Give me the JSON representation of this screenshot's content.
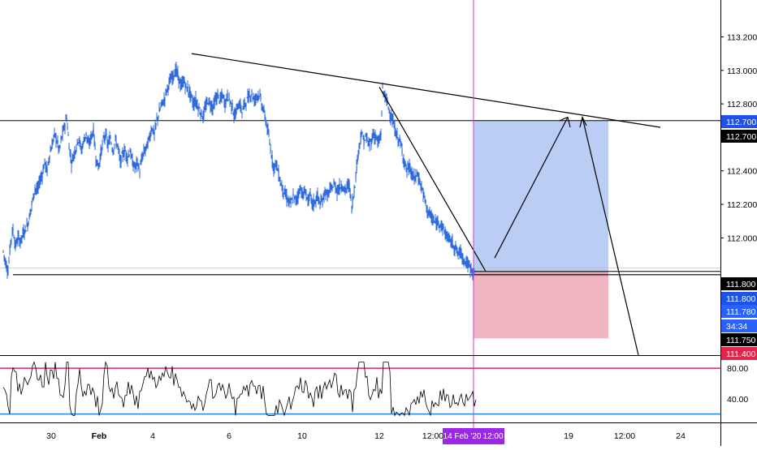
{
  "chart_data": {
    "type": "candlestick",
    "instrument_note": "USD/JPY style price chart with RSI sub-panel",
    "price_axis": {
      "ticks": [
        111.6,
        111.8,
        112.0,
        112.2,
        112.4,
        112.6,
        112.8,
        113.0,
        113.2
      ],
      "tick_labels": [
        "",
        "",
        "112.000",
        "112.200",
        "112.400",
        "112.600",
        "112.800",
        "113.000",
        "113.200"
      ],
      "ylim": [
        111.3,
        113.42
      ]
    },
    "x_axis": {
      "tick_labels": [
        "30",
        "Feb",
        "4",
        "6",
        "10",
        "12",
        "12:00",
        "19",
        "12:00",
        "24"
      ],
      "cursor_label": "14 Feb '20",
      "cursor_time_label": "12:00"
    },
    "price_badges": [
      {
        "label": "112.700",
        "value": 112.7,
        "color": "#1e53e5"
      },
      {
        "label": "112.700",
        "value": 112.7,
        "color": "#000000"
      },
      {
        "label": "111.800",
        "value": 111.8,
        "color": "#000000"
      },
      {
        "label": "111.800",
        "value": 111.8,
        "color": "#1e53e5"
      },
      {
        "label": "111.780",
        "value": 111.78,
        "color": "#2962ff"
      },
      {
        "label": "34:34",
        "value": null,
        "color": "#2962ff"
      },
      {
        "label": "111.750",
        "value": 111.75,
        "color": "#000000"
      },
      {
        "label": "111.400",
        "value": 111.4,
        "color": "#e0254a"
      }
    ],
    "series": [
      {
        "name": "Price",
        "points": [
          [
            0,
            111.92
          ],
          [
            3,
            111.85
          ],
          [
            6,
            111.8
          ],
          [
            9,
            111.98
          ],
          [
            12,
            112.05
          ],
          [
            15,
            111.95
          ],
          [
            18,
            112.0
          ],
          [
            21,
            111.98
          ],
          [
            24,
            112.02
          ],
          [
            27,
            112.05
          ],
          [
            30,
            112.08
          ],
          [
            33,
            112.15
          ],
          [
            36,
            112.22
          ],
          [
            39,
            112.3
          ],
          [
            42,
            112.28
          ],
          [
            45,
            112.34
          ],
          [
            48,
            112.38
          ],
          [
            51,
            112.45
          ],
          [
            54,
            112.4
          ],
          [
            57,
            112.5
          ],
          [
            60,
            112.55
          ],
          [
            63,
            112.62
          ],
          [
            66,
            112.58
          ],
          [
            69,
            112.52
          ],
          [
            72,
            112.6
          ],
          [
            75,
            112.66
          ],
          [
            78,
            112.72
          ],
          [
            81,
            112.55
          ],
          [
            84,
            112.45
          ],
          [
            87,
            112.5
          ],
          [
            90,
            112.55
          ],
          [
            93,
            112.6
          ],
          [
            96,
            112.52
          ],
          [
            99,
            112.58
          ],
          [
            102,
            112.62
          ],
          [
            105,
            112.55
          ],
          [
            108,
            112.6
          ],
          [
            111,
            112.64
          ],
          [
            114,
            112.48
          ],
          [
            117,
            112.42
          ],
          [
            120,
            112.5
          ],
          [
            123,
            112.58
          ],
          [
            126,
            112.62
          ],
          [
            129,
            112.55
          ],
          [
            132,
            112.6
          ],
          [
            135,
            112.52
          ],
          [
            138,
            112.58
          ],
          [
            141,
            112.55
          ],
          [
            144,
            112.45
          ],
          [
            147,
            112.5
          ],
          [
            150,
            112.52
          ],
          [
            153,
            112.48
          ],
          [
            156,
            112.52
          ],
          [
            159,
            112.45
          ],
          [
            162,
            112.42
          ],
          [
            165,
            112.45
          ],
          [
            168,
            112.4
          ],
          [
            171,
            112.48
          ],
          [
            174,
            112.52
          ],
          [
            177,
            112.55
          ],
          [
            180,
            112.6
          ],
          [
            183,
            112.66
          ],
          [
            186,
            112.62
          ],
          [
            189,
            112.7
          ],
          [
            192,
            112.75
          ],
          [
            195,
            112.8
          ],
          [
            198,
            112.82
          ],
          [
            201,
            112.88
          ],
          [
            204,
            112.92
          ],
          [
            207,
            112.95
          ],
          [
            210,
            112.98
          ],
          [
            213,
            113.0
          ],
          [
            216,
            112.95
          ],
          [
            219,
            112.9
          ],
          [
            222,
            112.94
          ],
          [
            225,
            112.9
          ],
          [
            228,
            112.88
          ],
          [
            231,
            112.85
          ],
          [
            234,
            112.8
          ],
          [
            237,
            112.82
          ],
          [
            240,
            112.78
          ],
          [
            243,
            112.75
          ],
          [
            246,
            112.72
          ],
          [
            249,
            112.78
          ],
          [
            252,
            112.82
          ],
          [
            255,
            112.8
          ],
          [
            258,
            112.78
          ],
          [
            261,
            112.82
          ],
          [
            264,
            112.85
          ],
          [
            267,
            112.82
          ],
          [
            270,
            112.85
          ],
          [
            273,
            112.8
          ],
          [
            276,
            112.85
          ],
          [
            279,
            112.82
          ],
          [
            282,
            112.78
          ],
          [
            285,
            112.72
          ],
          [
            288,
            112.78
          ],
          [
            291,
            112.8
          ],
          [
            294,
            112.75
          ],
          [
            297,
            112.8
          ],
          [
            300,
            112.82
          ],
          [
            303,
            112.85
          ],
          [
            306,
            112.86
          ],
          [
            309,
            112.82
          ],
          [
            312,
            112.85
          ],
          [
            315,
            112.86
          ],
          [
            318,
            112.8
          ],
          [
            321,
            112.75
          ],
          [
            324,
            112.68
          ],
          [
            327,
            112.6
          ],
          [
            330,
            112.5
          ],
          [
            333,
            112.42
          ],
          [
            336,
            112.45
          ],
          [
            339,
            112.38
          ],
          [
            342,
            112.32
          ],
          [
            345,
            112.28
          ],
          [
            348,
            112.25
          ],
          [
            351,
            112.22
          ],
          [
            354,
            112.2
          ],
          [
            357,
            112.25
          ],
          [
            360,
            112.22
          ],
          [
            363,
            112.26
          ],
          [
            366,
            112.3
          ],
          [
            369,
            112.25
          ],
          [
            372,
            112.28
          ],
          [
            375,
            112.22
          ],
          [
            378,
            112.25
          ],
          [
            381,
            112.2
          ],
          [
            384,
            112.22
          ],
          [
            387,
            112.25
          ],
          [
            390,
            112.2
          ],
          [
            393,
            112.22
          ],
          [
            396,
            112.28
          ],
          [
            399,
            112.25
          ],
          [
            402,
            112.28
          ],
          [
            405,
            112.3
          ],
          [
            408,
            112.32
          ],
          [
            411,
            112.28
          ],
          [
            414,
            112.3
          ],
          [
            417,
            112.32
          ],
          [
            420,
            112.28
          ],
          [
            423,
            112.3
          ],
          [
            426,
            112.32
          ],
          [
            429,
            112.18
          ],
          [
            432,
            112.28
          ],
          [
            435,
            112.42
          ],
          [
            438,
            112.55
          ],
          [
            441,
            112.62
          ],
          [
            444,
            112.58
          ],
          [
            447,
            112.6
          ],
          [
            450,
            112.55
          ],
          [
            453,
            112.58
          ],
          [
            456,
            112.62
          ],
          [
            459,
            112.6
          ],
          [
            462,
            112.56
          ],
          [
            465,
            112.62
          ],
          [
            467,
            112.88
          ],
          [
            470,
            112.85
          ],
          [
            473,
            112.8
          ],
          [
            476,
            112.75
          ],
          [
            479,
            112.7
          ],
          [
            482,
            112.65
          ],
          [
            485,
            112.6
          ],
          [
            488,
            112.58
          ],
          [
            491,
            112.52
          ],
          [
            494,
            112.45
          ],
          [
            497,
            112.4
          ],
          [
            500,
            112.42
          ],
          [
            503,
            112.38
          ],
          [
            506,
            112.35
          ],
          [
            509,
            112.38
          ],
          [
            512,
            112.35
          ],
          [
            515,
            112.3
          ],
          [
            518,
            112.25
          ],
          [
            521,
            112.18
          ],
          [
            524,
            112.15
          ],
          [
            527,
            112.12
          ],
          [
            530,
            112.1
          ],
          [
            533,
            112.08
          ],
          [
            536,
            112.1
          ],
          [
            539,
            112.08
          ],
          [
            542,
            112.05
          ],
          [
            545,
            112.02
          ],
          [
            548,
            112.0
          ],
          [
            551,
            111.98
          ],
          [
            554,
            111.96
          ],
          [
            557,
            111.94
          ],
          [
            560,
            111.9
          ],
          [
            563,
            111.92
          ],
          [
            566,
            111.88
          ],
          [
            569,
            111.86
          ],
          [
            572,
            111.84
          ],
          [
            575,
            111.82
          ],
          [
            578,
            111.8
          ],
          [
            581,
            111.8
          ]
        ]
      }
    ],
    "rsi": {
      "levels": [
        {
          "value": 80,
          "label": "80.00",
          "color": "#e91e63"
        },
        {
          "value": 20,
          "label": "",
          "color": "#1e88e5"
        }
      ],
      "ylim": [
        10,
        95
      ],
      "tick_labels": [
        "80.00",
        "40.00"
      ]
    },
    "drawings": {
      "resistance_line_from": 113.1,
      "resistance_line_to": 112.72,
      "support_line_value": 111.78,
      "horizontal_line_upper": 112.7,
      "horizontal_line_lower": 111.8,
      "target_zone": {
        "top": 112.7,
        "bottom": 111.8,
        "color": "#b9cdf5"
      },
      "stop_zone": {
        "top": 111.8,
        "bottom": 111.4,
        "color": "#f2b6c3"
      }
    },
    "colors": {
      "candle": "#2f6bd9",
      "cursor_line": "#d63bd6",
      "cursor_badge": "#9b27e8"
    }
  }
}
